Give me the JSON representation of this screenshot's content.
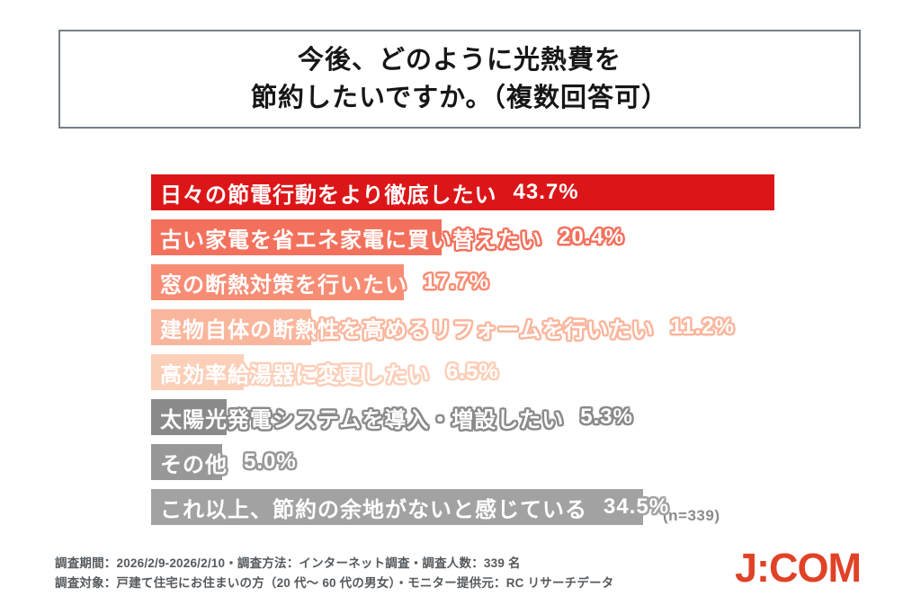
{
  "title": {
    "line1": "今後、どのように光熱費を",
    "line2": "節約したいですか。（複数回答可）"
  },
  "chart_data": {
    "type": "bar",
    "orientation": "horizontal",
    "unit": "%",
    "grid": false,
    "axes_shown": false,
    "value_range_implied": [
      0,
      45
    ],
    "sample_label": "(n=339)",
    "rows": [
      {
        "label": "日々の節電行動をより徹底したい",
        "value": 43.7,
        "value_text": "43.7%",
        "color": "#dc1618"
      },
      {
        "label": "古い家電を省エネ家電に買い替えたい",
        "value": 20.4,
        "value_text": "20.4%",
        "color": "#f3715c"
      },
      {
        "label": "窓の断熱対策を行いたい",
        "value": 17.7,
        "value_text": "17.7%",
        "color": "#f78d75"
      },
      {
        "label": "建物自体の断熱性を高めるリフォームを行いたい",
        "value": 11.2,
        "value_text": "11.2%",
        "color": "#fab69d"
      },
      {
        "label": "高効率給湯器に変更したい",
        "value": 6.5,
        "value_text": "6.5%",
        "color": "#fccfb9"
      },
      {
        "label": "太陽光発電システムを導入・増設したい",
        "value": 5.3,
        "value_text": "5.3%",
        "color": "#8a8a8a"
      },
      {
        "label": "その他",
        "value": 5.0,
        "value_text": "5.0%",
        "color": "#989898"
      },
      {
        "label": "これ以上、節約の余地がないと感じている",
        "value": 34.5,
        "value_text": "34.5%",
        "color": "#a2a2a2"
      }
    ]
  },
  "footnotes": {
    "line1": "調査期間：2026/2/9-2026/2/10・調査方法：インターネット調査・調査人数：339 名",
    "line2": "調査対象：戸建て住宅にお住まいの方（20 代～ 60 代の男女）・モニター提供元：RC リサーチデータ"
  },
  "logo": {
    "text": "J:COM",
    "color": "#e04227"
  }
}
